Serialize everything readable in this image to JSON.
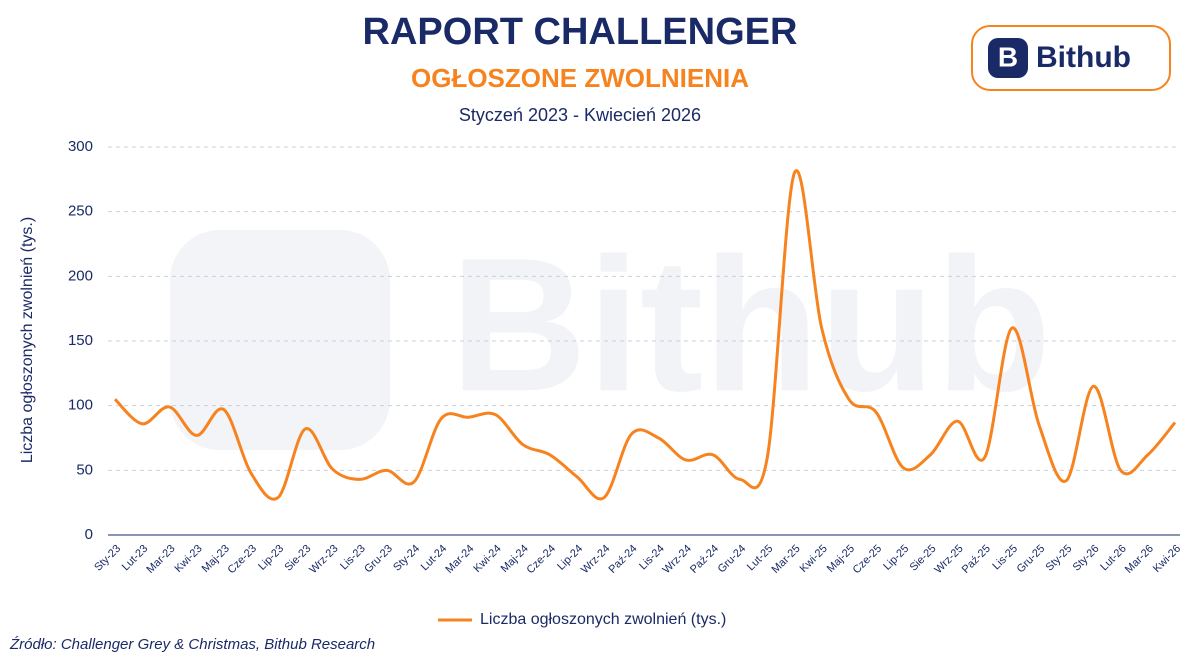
{
  "brand": "Bithub",
  "source": "Źródło: Challenger Grey & Christmas, Bithub Research",
  "chart_data": {
    "type": "line",
    "title": "RAPORT CHALLENGER",
    "subtitle": "OGŁOSZONE ZWOLNIENIA",
    "period": "Styczeń 2023 - Kwiecień 2026",
    "y_label": "Liczba ogłoszonych zwolnień (tys.)",
    "categories": [
      "Sty-23",
      "Lut-23",
      "Mar-23",
      "Kwi-23",
      "Maj-23",
      "Cze-23",
      "Lip-23",
      "Sie-23",
      "Wrz-23",
      "Lis-23",
      "Gru-23",
      "Sty-24",
      "Lut-24",
      "Mar-24",
      "Kwi-24",
      "Maj-24",
      "Cze-24",
      "Lip-24",
      "Wrz-24",
      "Paź-24",
      "Lis-24",
      "Wrz-24",
      "Paź-24",
      "Gru-24",
      "Lut-25",
      "Mar-25",
      "Kwi-25",
      "Maj-25",
      "Cze-25",
      "Lip-25",
      "Sie-25",
      "Wrz-25",
      "Paź-25",
      "Lis-25",
      "Gru-25",
      "Sty-25",
      "Sty-26",
      "Lut-26",
      "Mar-26",
      "Kwi-26"
    ],
    "series": [
      {
        "name": "Liczba ogłoszonych zwolnień (tys.)",
        "color": "#f7831f",
        "values": [
          105,
          86,
          99,
          77,
          97,
          48,
          29,
          82,
          51,
          43,
          50,
          41,
          90,
          91,
          93,
          70,
          62,
          45,
          29,
          78,
          75,
          58,
          62,
          43,
          60,
          280,
          160,
          105,
          95,
          52,
          62,
          88,
          60,
          160,
          85,
          42,
          115,
          50,
          62,
          87
        ]
      }
    ],
    "ylim": [
      0,
      300
    ],
    "yticks": [
      0,
      50,
      100,
      150,
      200,
      250,
      300
    ],
    "grid": true,
    "legend": "bottom"
  }
}
